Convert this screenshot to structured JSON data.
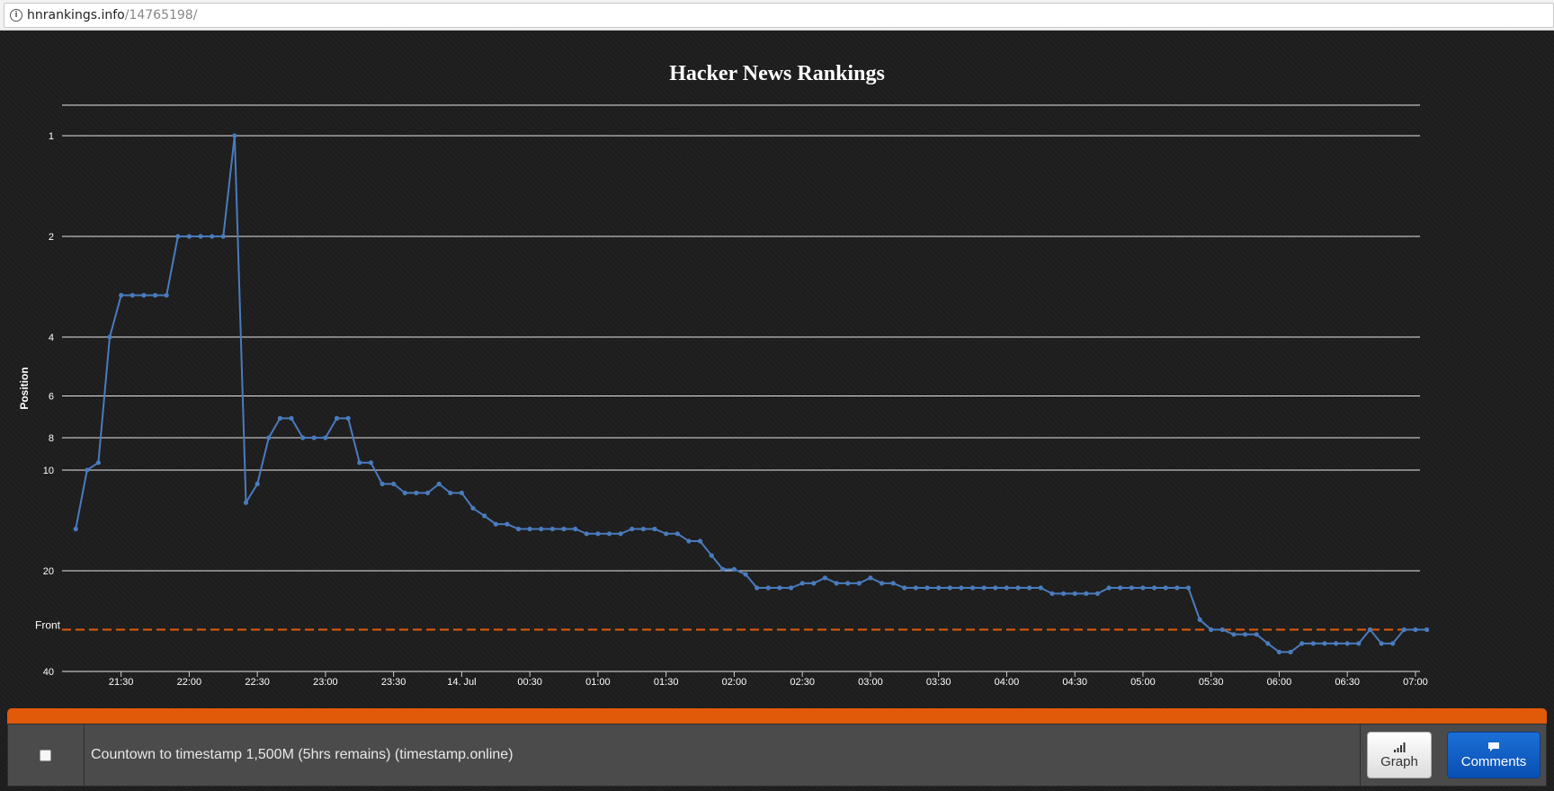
{
  "browser": {
    "url_host": "hnrankings.info",
    "url_path": "/14765198/"
  },
  "chart_data": {
    "type": "line",
    "title": "Hacker News Rankings",
    "ylabel": "Position",
    "xlabel": "",
    "y_scale": "log",
    "y_reversed": true,
    "ylim": [
      1,
      40
    ],
    "y_ticks": [
      1,
      2,
      4,
      6,
      8,
      10,
      20,
      40
    ],
    "x_ticks": [
      "21:30",
      "22:00",
      "22:30",
      "23:00",
      "23:30",
      "14. Jul",
      "00:30",
      "01:00",
      "01:30",
      "02:00",
      "02:30",
      "03:00",
      "03:30",
      "04:00",
      "04:30",
      "05:00",
      "05:30",
      "06:00",
      "06:30",
      "07:00"
    ],
    "x_tick_times": [
      "2017-07-13 21:30",
      "2017-07-13 22:00",
      "2017-07-13 22:30",
      "2017-07-13 23:00",
      "2017-07-13 23:30",
      "2017-07-14 00:00",
      "2017-07-14 00:30",
      "2017-07-14 01:00",
      "2017-07-14 01:30",
      "2017-07-14 02:00",
      "2017-07-14 02:30",
      "2017-07-14 03:00",
      "2017-07-14 03:30",
      "2017-07-14 04:00",
      "2017-07-14 04:30",
      "2017-07-14 05:00",
      "2017-07-14 05:30",
      "2017-07-14 06:00",
      "2017-07-14 06:30",
      "2017-07-14 07:00"
    ],
    "xlim": [
      "2017-07-13 21:04",
      "2017-07-14 07:02"
    ],
    "grid": true,
    "front_line": {
      "label": "Front",
      "value": 30,
      "color": "#e15a0a"
    },
    "series": [
      {
        "color": "#4a7bbd",
        "points": [
          [
            "2017-07-13 21:10",
            15
          ],
          [
            "2017-07-13 21:15",
            10
          ],
          [
            "2017-07-13 21:20",
            9.5
          ],
          [
            "2017-07-13 21:25",
            4
          ],
          [
            "2017-07-13 21:30",
            3
          ],
          [
            "2017-07-13 21:35",
            3
          ],
          [
            "2017-07-13 21:40",
            3
          ],
          [
            "2017-07-13 21:45",
            3
          ],
          [
            "2017-07-13 21:50",
            3
          ],
          [
            "2017-07-13 21:55",
            2
          ],
          [
            "2017-07-13 22:00",
            2
          ],
          [
            "2017-07-13 22:05",
            2
          ],
          [
            "2017-07-13 22:10",
            2
          ],
          [
            "2017-07-13 22:15",
            2
          ],
          [
            "2017-07-13 22:20",
            1
          ],
          [
            "2017-07-13 22:25",
            12.5
          ],
          [
            "2017-07-13 22:30",
            11
          ],
          [
            "2017-07-13 22:35",
            8
          ],
          [
            "2017-07-13 22:40",
            7
          ],
          [
            "2017-07-13 22:45",
            7
          ],
          [
            "2017-07-13 22:50",
            8
          ],
          [
            "2017-07-13 22:55",
            8
          ],
          [
            "2017-07-13 23:00",
            8
          ],
          [
            "2017-07-13 23:05",
            7
          ],
          [
            "2017-07-13 23:10",
            7
          ],
          [
            "2017-07-13 23:15",
            9.5
          ],
          [
            "2017-07-13 23:20",
            9.5
          ],
          [
            "2017-07-13 23:25",
            11
          ],
          [
            "2017-07-13 23:30",
            11
          ],
          [
            "2017-07-13 23:35",
            11.7
          ],
          [
            "2017-07-13 23:40",
            11.7
          ],
          [
            "2017-07-13 23:45",
            11.7
          ],
          [
            "2017-07-13 23:50",
            11
          ],
          [
            "2017-07-13 23:55",
            11.7
          ],
          [
            "2017-07-14 00:00",
            11.7
          ],
          [
            "2017-07-14 00:05",
            13
          ],
          [
            "2017-07-14 00:10",
            13.7
          ],
          [
            "2017-07-14 00:15",
            14.5
          ],
          [
            "2017-07-14 00:20",
            14.5
          ],
          [
            "2017-07-14 00:25",
            15
          ],
          [
            "2017-07-14 00:30",
            15
          ],
          [
            "2017-07-14 00:35",
            15
          ],
          [
            "2017-07-14 00:40",
            15
          ],
          [
            "2017-07-14 00:45",
            15
          ],
          [
            "2017-07-14 00:50",
            15
          ],
          [
            "2017-07-14 00:55",
            15.5
          ],
          [
            "2017-07-14 01:00",
            15.5
          ],
          [
            "2017-07-14 01:05",
            15.5
          ],
          [
            "2017-07-14 01:10",
            15.5
          ],
          [
            "2017-07-14 01:15",
            15
          ],
          [
            "2017-07-14 01:20",
            15
          ],
          [
            "2017-07-14 01:25",
            15
          ],
          [
            "2017-07-14 01:30",
            15.5
          ],
          [
            "2017-07-14 01:35",
            15.5
          ],
          [
            "2017-07-14 01:40",
            16.3
          ],
          [
            "2017-07-14 01:45",
            16.3
          ],
          [
            "2017-07-14 01:50",
            18
          ],
          [
            "2017-07-14 01:55",
            19.8
          ],
          [
            "2017-07-14 02:00",
            19.8
          ],
          [
            "2017-07-14 02:05",
            20.5
          ],
          [
            "2017-07-14 02:10",
            22.5
          ],
          [
            "2017-07-14 02:15",
            22.5
          ],
          [
            "2017-07-14 02:20",
            22.5
          ],
          [
            "2017-07-14 02:25",
            22.5
          ],
          [
            "2017-07-14 02:30",
            21.8
          ],
          [
            "2017-07-14 02:35",
            21.8
          ],
          [
            "2017-07-14 02:40",
            21
          ],
          [
            "2017-07-14 02:45",
            21.8
          ],
          [
            "2017-07-14 02:50",
            21.8
          ],
          [
            "2017-07-14 02:55",
            21.8
          ],
          [
            "2017-07-14 03:00",
            21
          ],
          [
            "2017-07-14 03:05",
            21.8
          ],
          [
            "2017-07-14 03:10",
            21.8
          ],
          [
            "2017-07-14 03:15",
            22.5
          ],
          [
            "2017-07-14 03:20",
            22.5
          ],
          [
            "2017-07-14 03:25",
            22.5
          ],
          [
            "2017-07-14 03:30",
            22.5
          ],
          [
            "2017-07-14 03:35",
            22.5
          ],
          [
            "2017-07-14 03:40",
            22.5
          ],
          [
            "2017-07-14 03:45",
            22.5
          ],
          [
            "2017-07-14 03:50",
            22.5
          ],
          [
            "2017-07-14 03:55",
            22.5
          ],
          [
            "2017-07-14 04:00",
            22.5
          ],
          [
            "2017-07-14 04:05",
            22.5
          ],
          [
            "2017-07-14 04:10",
            22.5
          ],
          [
            "2017-07-14 04:15",
            22.5
          ],
          [
            "2017-07-14 04:20",
            23.4
          ],
          [
            "2017-07-14 04:25",
            23.4
          ],
          [
            "2017-07-14 04:30",
            23.4
          ],
          [
            "2017-07-14 04:35",
            23.4
          ],
          [
            "2017-07-14 04:40",
            23.4
          ],
          [
            "2017-07-14 04:45",
            22.5
          ],
          [
            "2017-07-14 04:50",
            22.5
          ],
          [
            "2017-07-14 04:55",
            22.5
          ],
          [
            "2017-07-14 05:00",
            22.5
          ],
          [
            "2017-07-14 05:05",
            22.5
          ],
          [
            "2017-07-14 05:10",
            22.5
          ],
          [
            "2017-07-14 05:15",
            22.5
          ],
          [
            "2017-07-14 05:20",
            22.5
          ],
          [
            "2017-07-14 05:25",
            28
          ],
          [
            "2017-07-14 05:30",
            30
          ],
          [
            "2017-07-14 05:35",
            30
          ],
          [
            "2017-07-14 05:40",
            31
          ],
          [
            "2017-07-14 05:45",
            31
          ],
          [
            "2017-07-14 05:50",
            31
          ],
          [
            "2017-07-14 05:55",
            33
          ],
          [
            "2017-07-14 06:00",
            35
          ],
          [
            "2017-07-14 06:05",
            35
          ],
          [
            "2017-07-14 06:10",
            33
          ],
          [
            "2017-07-14 06:15",
            33
          ],
          [
            "2017-07-14 06:20",
            33
          ],
          [
            "2017-07-14 06:25",
            33
          ],
          [
            "2017-07-14 06:30",
            33
          ],
          [
            "2017-07-14 06:35",
            33
          ],
          [
            "2017-07-14 06:40",
            30
          ],
          [
            "2017-07-14 06:45",
            33
          ],
          [
            "2017-07-14 06:50",
            33
          ],
          [
            "2017-07-14 06:55",
            30
          ],
          [
            "2017-07-14 07:00",
            30
          ],
          [
            "2017-07-14 07:05",
            30
          ]
        ]
      }
    ]
  },
  "footer": {
    "story_title": "Countown to timestamp 1,500M (5hrs remains) (timestamp.online)",
    "graph_button": "Graph",
    "comments_button": "Comments"
  }
}
